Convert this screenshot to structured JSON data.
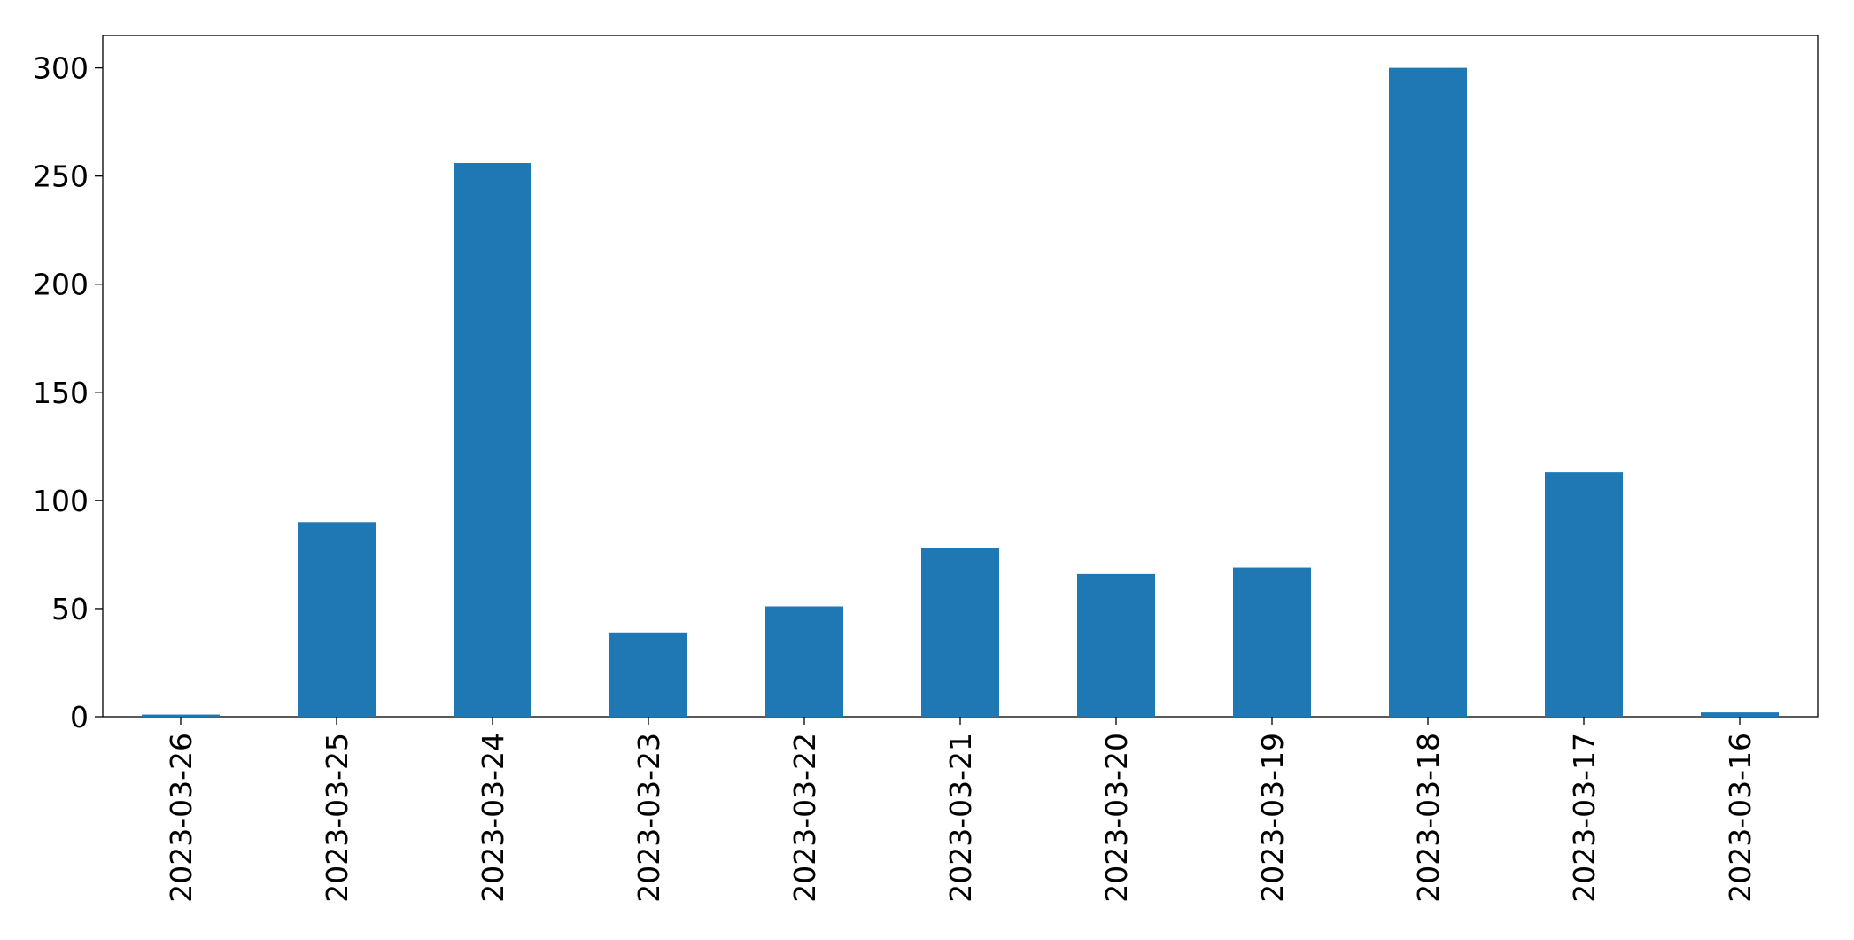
{
  "chart_data": {
    "type": "bar",
    "categories": [
      "2023-03-26",
      "2023-03-25",
      "2023-03-24",
      "2023-03-23",
      "2023-03-22",
      "2023-03-21",
      "2023-03-20",
      "2023-03-19",
      "2023-03-18",
      "2023-03-17",
      "2023-03-16"
    ],
    "values": [
      1,
      90,
      256,
      39,
      51,
      78,
      66,
      69,
      300,
      113,
      2
    ],
    "color": "#1f77b4",
    "ylim": [
      0,
      315
    ],
    "yticks": [
      0,
      50,
      100,
      150,
      200,
      250,
      300
    ],
    "grid": false
  }
}
